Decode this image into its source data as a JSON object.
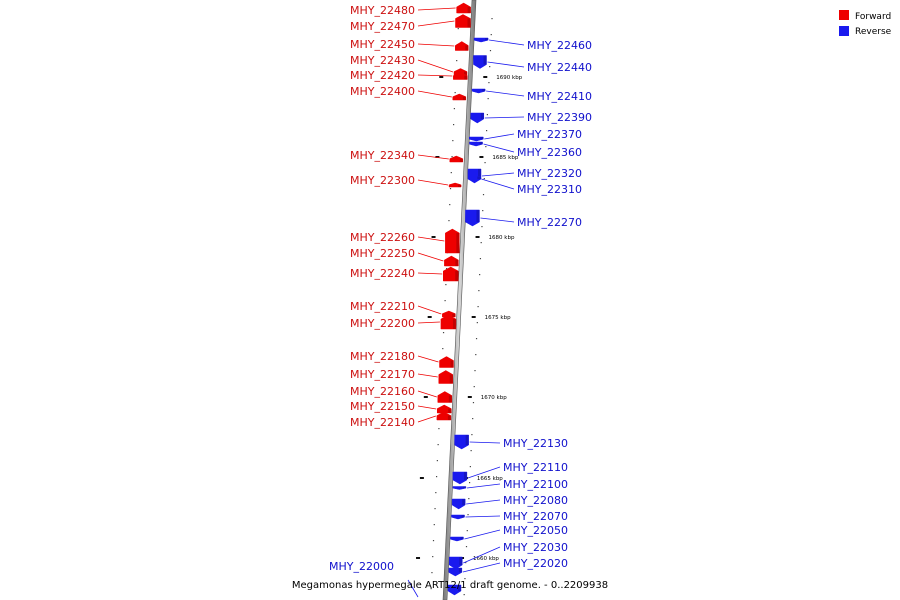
{
  "legend": {
    "forward_label": "Forward",
    "reverse_label": "Reverse",
    "forward_color": "#ee0000",
    "reverse_color": "#1a1aee"
  },
  "caption": "Megamonas hypermegale ART12/1 draft genome. - 0..2209938",
  "scale_ticks": [
    "1690 kbp",
    "1685 kbp",
    "1680 kbp",
    "1675 kbp",
    "1670 kbp",
    "1665 kbp",
    "1660 kbp"
  ],
  "forward_genes": [
    "MHY_22480",
    "MHY_22470",
    "MHY_22450",
    "MHY_22430",
    "MHY_22420",
    "MHY_22400",
    "MHY_22340",
    "MHY_22300",
    "MHY_22260",
    "MHY_22250",
    "MHY_22240",
    "MHY_22210",
    "MHY_22200",
    "MHY_22180",
    "MHY_22170",
    "MHY_22160",
    "MHY_22150",
    "MHY_22140"
  ],
  "reverse_genes": [
    "MHY_22460",
    "MHY_22440",
    "MHY_22410",
    "MHY_22390",
    "MHY_22370",
    "MHY_22360",
    "MHY_22320",
    "MHY_22310",
    "MHY_22270",
    "MHY_22130",
    "MHY_22110",
    "MHY_22100",
    "MHY_22080",
    "MHY_22070",
    "MHY_22050",
    "MHY_22030",
    "MHY_22020",
    "MHY_22000"
  ]
}
